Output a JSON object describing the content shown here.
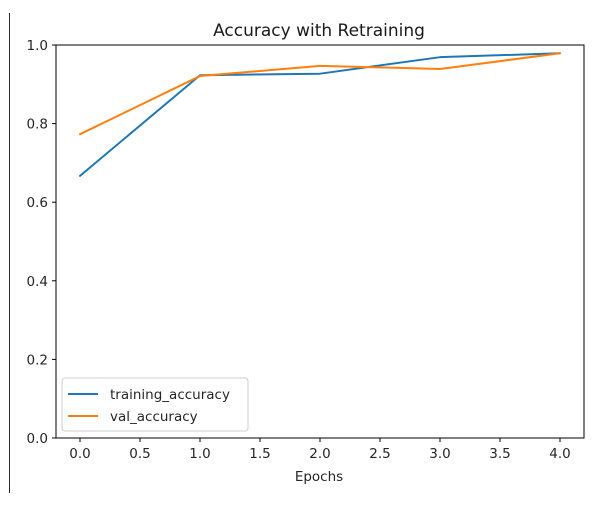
{
  "chart_data": {
    "type": "line",
    "title": "Accuracy with Retraining",
    "xlabel": "Epochs",
    "ylabel": "",
    "xlim": [
      -0.2,
      4.2
    ],
    "ylim": [
      0.0,
      1.0
    ],
    "x_ticks": [
      0.0,
      0.5,
      1.0,
      1.5,
      2.0,
      2.5,
      3.0,
      3.5,
      4.0
    ],
    "x_tick_labels": [
      "0.0",
      "0.5",
      "1.0",
      "1.5",
      "2.0",
      "2.5",
      "3.0",
      "3.5",
      "4.0"
    ],
    "y_ticks": [
      0.0,
      0.2,
      0.4,
      0.6,
      0.8,
      1.0
    ],
    "y_tick_labels": [
      "0.0",
      "0.2",
      "0.4",
      "0.6",
      "0.8",
      "1.0"
    ],
    "x": [
      0,
      1,
      2,
      3,
      4
    ],
    "series": [
      {
        "name": "training_accuracy",
        "color": "#1f77b4",
        "values": [
          0.667,
          0.923,
          0.927,
          0.969,
          0.979
        ]
      },
      {
        "name": "val_accuracy",
        "color": "#ff7f0e",
        "values": [
          0.773,
          0.921,
          0.947,
          0.939,
          0.979
        ]
      }
    ],
    "grid": false,
    "legend_position": "lower-left"
  }
}
